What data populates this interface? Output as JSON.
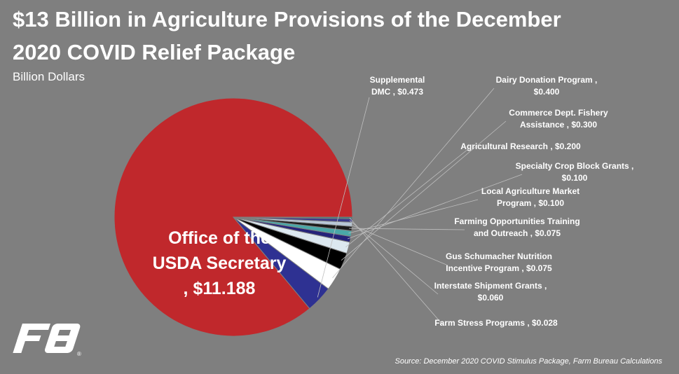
{
  "header": {
    "title_line1": "$13 Billion in Agriculture Provisions of the December",
    "title_line2": "2020 COVID Relief Package",
    "subtitle": "Billion Dollars"
  },
  "footer": {
    "source": "Source: December 2020 COVID Stimulus Package, Farm Bureau Calculations"
  },
  "logo": {
    "icon": "farm-bureau-logo",
    "mark": "®"
  },
  "chart_data": {
    "type": "pie",
    "title": "$13 Billion in Agriculture Provisions of the December 2020 COVID Relief Package",
    "subtitle": "Billion Dollars",
    "slices": [
      {
        "label": "Office of the USDA Secretary",
        "value": 11.188,
        "value_label": "$11.188",
        "label_lines": [
          "Office of the",
          "USDA Secretary",
          ",  $11.188"
        ],
        "color": "#c0282c",
        "label_style": "inside"
      },
      {
        "label": "Supplemental DMC",
        "value": 0.473,
        "value_label": "$0.473",
        "label_lines": [
          "Supplemental",
          "DMC ,  $0.473"
        ],
        "color": "#2e3192"
      },
      {
        "label": "Dairy Donation Program",
        "value": 0.4,
        "value_label": "$0.400",
        "label_lines": [
          "Dairy Donation Program ,",
          "$0.400"
        ],
        "color": "#ffffff"
      },
      {
        "label": "Commerce Dept. Fishery Assistance",
        "value": 0.3,
        "value_label": "$0.300",
        "label_lines": [
          "Commerce Dept. Fishery",
          "Assistance ,  $0.300"
        ],
        "color": "#000000"
      },
      {
        "label": "Agricultural Research",
        "value": 0.2,
        "value_label": "$0.200",
        "label_lines": [
          "Agricultural Research ,  $0.200"
        ],
        "color": "#dce8f0"
      },
      {
        "label": "Specialty Crop Block Grants",
        "value": 0.1,
        "value_label": "$0.100",
        "label_lines": [
          "Specialty Crop Block Grants ,",
          "$0.100"
        ],
        "color": "#25237a"
      },
      {
        "label": "Local Agriculture Market Program",
        "value": 0.1,
        "value_label": "$0.100",
        "label_lines": [
          "Local Agriculture Market",
          "Program ,  $0.100"
        ],
        "color": "#4aa8a8"
      },
      {
        "label": "Farming Opportunities Training and Outreach",
        "value": 0.075,
        "value_label": "$0.075",
        "label_lines": [
          "Farming Opportunities Training",
          "and Outreach ,  $0.075"
        ],
        "color": "#1a1a1a"
      },
      {
        "label": "Gus Schumacher Nutrition Incentive Program",
        "value": 0.075,
        "value_label": "$0.075",
        "label_lines": [
          "Gus Schumacher Nutrition",
          "Incentive Program ,  $0.075"
        ],
        "color": "#b8c8d8"
      },
      {
        "label": "Interstate Shipment Grants",
        "value": 0.06,
        "value_label": "$0.060",
        "label_lines": [
          "Interstate Shipment Grants ,",
          "$0.060"
        ],
        "color": "#3a3a8a"
      },
      {
        "label": "Farm Stress Programs",
        "value": 0.028,
        "value_label": "$0.028",
        "label_lines": [
          "Farm Stress Programs ,  $0.028"
        ],
        "color": "#2a7a7a"
      }
    ],
    "start_position": "3 o'clock",
    "direction": "counterclockwise",
    "legend": "none"
  }
}
